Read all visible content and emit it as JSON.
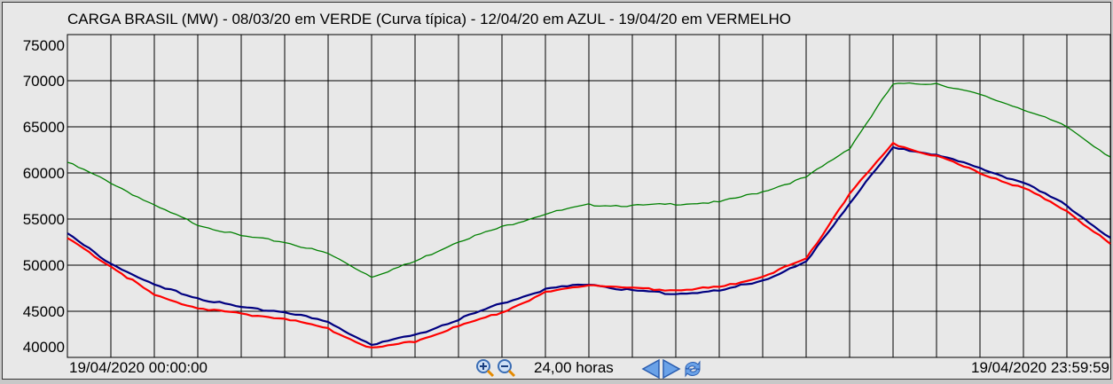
{
  "chart_data": {
    "type": "line",
    "title": "CARGA BRASIL (MW) - 08/03/20 em VERDE (Curva típica) - 12/04/20 em AZUL - 19/04/20 em VERMELHO",
    "xlabel": "",
    "ylabel": "",
    "xlim": [
      0,
      24
    ],
    "ylim": [
      40000,
      75000
    ],
    "yticks": [
      75000,
      70000,
      65000,
      60000,
      55000,
      50000,
      45000,
      40000
    ],
    "grid": true,
    "x": [
      0,
      1,
      2,
      3,
      4,
      5,
      6,
      7,
      8,
      9,
      10,
      11,
      12,
      13,
      14,
      15,
      16,
      17,
      18,
      19,
      20,
      21,
      22,
      23,
      24
    ],
    "series": [
      {
        "color": "#008000",
        "values": [
          61150,
          58950,
          56440,
          54400,
          53170,
          52500,
          51250,
          48750,
          50400,
          52600,
          54130,
          55580,
          56540,
          56440,
          56630,
          56830,
          57980,
          59520,
          62690,
          69620,
          69710,
          68460,
          66920,
          65000,
          61730
        ]
      },
      {
        "color": "#000080",
        "values": [
          53370,
          50190,
          47790,
          46440,
          45380,
          45000,
          43750,
          41440,
          42400,
          44130,
          45870,
          47400,
          47980,
          47210,
          46920,
          47210,
          48370,
          50290,
          56730,
          62690,
          62020,
          60480,
          58940,
          56440,
          52980
        ]
      },
      {
        "color": "#ff0000",
        "values": [
          52880,
          49900,
          46730,
          45380,
          44710,
          44230,
          43080,
          40960,
          41730,
          43370,
          44900,
          47020,
          47880,
          47500,
          47310,
          47600,
          48750,
          50670,
          57790,
          63170,
          61830,
          60000,
          58370,
          55870,
          52310
        ]
      }
    ]
  },
  "footer": {
    "start_time": "19/04/2020 00:00:00",
    "end_time": "19/04/2020 23:59:59",
    "span": "24,00 horas"
  }
}
